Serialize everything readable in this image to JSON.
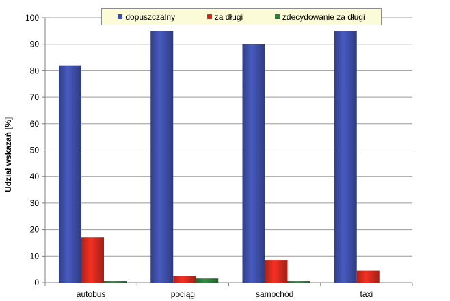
{
  "chart_data": {
    "type": "bar",
    "categories": [
      "autobus",
      "pociąg",
      "samochód",
      "taxi"
    ],
    "series": [
      {
        "name": "dopuszczalny",
        "values": [
          82,
          95,
          90,
          95
        ],
        "color": "#3f4fa8"
      },
      {
        "name": "za długi",
        "values": [
          17,
          2.5,
          8.5,
          4.5
        ],
        "color": "#d62a1e"
      },
      {
        "name": "zdecydowanie za długi",
        "values": [
          0.5,
          1.5,
          0.5,
          0
        ],
        "color": "#2e7a3c"
      }
    ],
    "title": "",
    "xlabel": "",
    "ylabel": "Udział wskazań [%]",
    "ylim": [
      0,
      100
    ],
    "yticks": [
      0,
      10,
      20,
      30,
      40,
      50,
      60,
      70,
      80,
      90,
      100
    ],
    "grid": true,
    "legend_position": "top"
  }
}
